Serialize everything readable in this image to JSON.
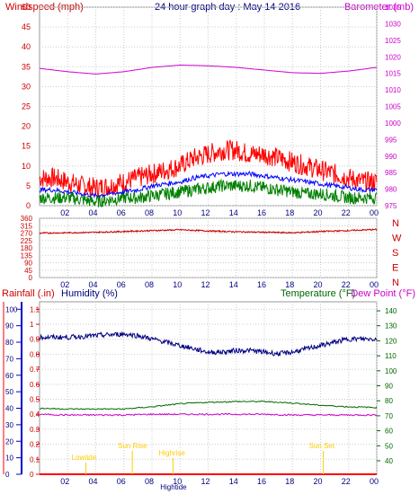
{
  "header": {
    "windspeed_label": "Windspeed (mph)",
    "title": "24 hour graph day : May 14 2016",
    "barometer_label": "Barometer (mb)"
  },
  "lower_header": {
    "rainfall_label": "Rainfall (.in)",
    "humidity_label": "Humidity (%)",
    "temperature_label": "Temperature (°F)",
    "dewpoint_label": "Dew Point (°F)"
  },
  "annotations": {
    "lowtide": "Lowtide",
    "sunrise": "Sun Rise",
    "highrise": "Highrise",
    "hightide": "Hightide",
    "sunset": "Sun Set"
  },
  "colors": {
    "wind": "#ff0000",
    "gust_avg": "#0000ff",
    "wind_low": "#008000",
    "barometer": "#cc00cc",
    "direction": "#cc0000",
    "humidity": "#000080",
    "temperature": "#006600",
    "dewpoint": "#cc00cc",
    "rain": "#ff0000",
    "annotation": "#ffcc00",
    "axis_left": "#cc0000",
    "axis_right_baro": "#cc00cc",
    "axis_right_temp": "#006600",
    "axis_humidity": "#000080",
    "title": "#000080"
  },
  "chart_data": [
    {
      "type": "line",
      "name": "wind-barometer",
      "x_ticks": [
        "02",
        "04",
        "06",
        "08",
        "10",
        "12",
        "14",
        "16",
        "18",
        "20",
        "22",
        "00"
      ],
      "y_left_ticks": [
        "0",
        "5",
        "10",
        "15",
        "20",
        "25",
        "30",
        "35",
        "40",
        "45",
        "50"
      ],
      "y_right_ticks": [
        "975",
        "980",
        "985",
        "990",
        "995",
        "1000",
        "1005",
        "1010",
        "1015",
        "1020",
        "1025",
        "1030",
        "1035"
      ],
      "ylim_left": [
        0,
        50
      ],
      "ylim_right": [
        975,
        1035
      ],
      "series": [
        {
          "key": "wind",
          "hours": [
            0,
            1,
            2,
            3,
            4,
            5,
            6,
            7,
            8,
            9,
            10,
            11,
            12,
            13,
            14,
            15,
            16,
            17,
            18,
            19,
            20,
            21,
            22,
            23,
            24
          ],
          "values": [
            7,
            7,
            6,
            5,
            4.5,
            5,
            6,
            7,
            8,
            9,
            10,
            12,
            13,
            14,
            14,
            13,
            13,
            12,
            11,
            10,
            9,
            8,
            7,
            6,
            6
          ]
        },
        {
          "key": "gust_avg",
          "hours": [
            0,
            1,
            2,
            3,
            4,
            5,
            6,
            7,
            8,
            9,
            10,
            11,
            12,
            13,
            14,
            15,
            16,
            17,
            18,
            19,
            20,
            21,
            22,
            23,
            24
          ],
          "values": [
            4,
            4,
            3.5,
            3,
            2.5,
            3,
            3.5,
            4,
            5,
            5.5,
            6,
            7,
            7.5,
            8,
            8,
            8,
            7.5,
            7,
            6.5,
            6,
            5.5,
            5,
            4.5,
            4,
            4
          ]
        },
        {
          "key": "wind_low",
          "hours": [
            0,
            1,
            2,
            3,
            4,
            5,
            6,
            7,
            8,
            9,
            10,
            11,
            12,
            13,
            14,
            15,
            16,
            17,
            18,
            19,
            20,
            21,
            22,
            23,
            24
          ],
          "values": [
            2,
            2,
            2,
            1.5,
            1,
            1.5,
            2,
            2,
            2.5,
            3,
            3.5,
            4,
            4.5,
            5,
            5,
            5,
            4.5,
            4,
            3.5,
            3,
            3,
            2.5,
            2,
            2,
            2
          ]
        },
        {
          "key": "barometer",
          "hours": [
            0,
            2,
            4,
            6,
            8,
            10,
            12,
            14,
            16,
            18,
            20,
            22,
            24
          ],
          "values": [
            1016.5,
            1015.5,
            1014.8,
            1015.5,
            1016.8,
            1017.5,
            1017.3,
            1016.8,
            1016,
            1015.2,
            1015,
            1015.7,
            1016.8
          ]
        }
      ]
    },
    {
      "type": "line",
      "name": "wind-direction",
      "x_ticks": [
        "02",
        "04",
        "06",
        "08",
        "10",
        "12",
        "14",
        "16",
        "18",
        "20",
        "22",
        "00"
      ],
      "y_left_ticks": [
        "0",
        "45",
        "90",
        "135",
        "180",
        "225",
        "270",
        "315",
        "360"
      ],
      "y_right_labels": [
        "N",
        "W",
        "S",
        "E",
        "N"
      ],
      "ylim": [
        0,
        360
      ],
      "series": [
        {
          "key": "direction",
          "hours": [
            0,
            2,
            4,
            6,
            8,
            10,
            12,
            14,
            16,
            18,
            20,
            22,
            24
          ],
          "values": [
            270,
            272,
            275,
            280,
            285,
            290,
            283,
            278,
            275,
            272,
            280,
            285,
            292
          ]
        }
      ]
    },
    {
      "type": "line",
      "name": "rain-humidity-temperature",
      "x_ticks": [
        "02",
        "04",
        "06",
        "08",
        "10",
        "12",
        "14",
        "16",
        "18",
        "20",
        "22",
        "00"
      ],
      "y_rain_ticks": [
        "0",
        "0.1",
        "0.2",
        "0.3",
        "0.4",
        "0.5",
        "0.6",
        "0.7",
        "0.8",
        "0.9",
        "1",
        "1.1"
      ],
      "y_humidity_ticks": [
        "0",
        "10",
        "20",
        "30",
        "40",
        "50",
        "60",
        "70",
        "80",
        "90",
        "100"
      ],
      "y_temp_ticks": [
        "40",
        "50",
        "60",
        "70",
        "80",
        "90",
        "100",
        "110",
        "120",
        "130",
        "140"
      ],
      "ylim_rain": [
        0,
        1.15
      ],
      "ylim_humidity": [
        0,
        104.5
      ],
      "ylim_temp": [
        31,
        146
      ],
      "series": [
        {
          "key": "humidity",
          "hours": [
            0,
            2,
            4,
            6,
            7,
            8,
            9,
            10,
            11,
            12,
            13,
            14,
            15,
            16,
            17,
            18,
            19,
            20,
            21,
            22,
            23,
            24
          ],
          "values": [
            83,
            83,
            84,
            85,
            84,
            82,
            80,
            78,
            76,
            74,
            74,
            75,
            75,
            74,
            73,
            74,
            76,
            78,
            80,
            82,
            82,
            82
          ]
        },
        {
          "key": "temperature",
          "hours": [
            0,
            2,
            4,
            6,
            8,
            10,
            12,
            14,
            16,
            18,
            20,
            22,
            24
          ],
          "values": [
            75,
            74.5,
            74.5,
            74.5,
            76,
            78,
            79,
            79.5,
            79.5,
            78.5,
            77,
            76,
            75.5
          ]
        },
        {
          "key": "dewpoint",
          "hours": [
            0,
            2,
            4,
            6,
            8,
            10,
            12,
            14,
            16,
            18,
            20,
            22,
            24
          ],
          "values": [
            71,
            70.5,
            70.5,
            70.5,
            71,
            71,
            71,
            71,
            71,
            70.5,
            70.5,
            70.5,
            70.5
          ]
        },
        {
          "key": "rain",
          "hours": [
            0,
            24
          ],
          "values": [
            0,
            0
          ]
        }
      ],
      "markers": [
        {
          "key": "lowtide",
          "hour": 3.3
        },
        {
          "key": "sunrise",
          "hour": 6.6
        },
        {
          "key": "highrise",
          "hour": 9.5
        },
        {
          "key": "hightide",
          "hour": 10.0
        },
        {
          "key": "sunset",
          "hour": 20.2
        }
      ]
    }
  ]
}
